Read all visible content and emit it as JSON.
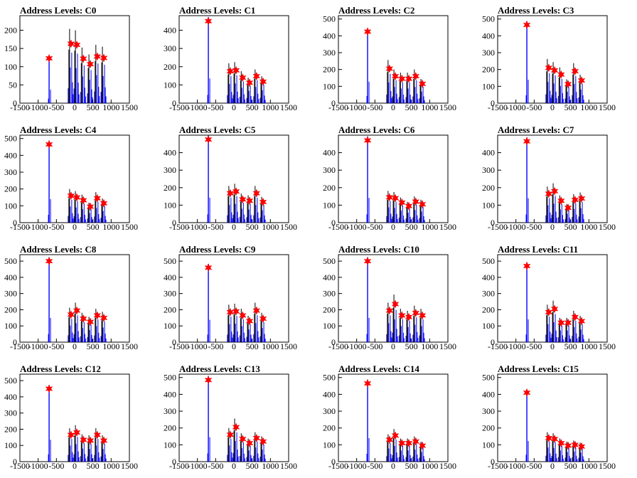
{
  "chart_data": [
    {
      "type": "histogram",
      "title": "Address Levels: C0",
      "ylim": [
        0,
        240
      ],
      "yticks": [
        0,
        50,
        100,
        150,
        200
      ],
      "xlim": [
        -1500,
        1500
      ],
      "xticks": [
        -1500,
        -1000,
        -500,
        0,
        500,
        1000,
        1500
      ],
      "xtick_labels": [
        "-1500",
        "-1000",
        "-500",
        "0",
        "500",
        "1000",
        "1500"
      ],
      "peaks": [
        {
          "x": -700,
          "y": 123
        },
        {
          "x": -100,
          "y": 163
        },
        {
          "x": 60,
          "y": 160
        },
        {
          "x": 240,
          "y": 122
        },
        {
          "x": 430,
          "y": 107
        },
        {
          "x": 620,
          "y": 128
        },
        {
          "x": 800,
          "y": 124
        }
      ]
    },
    {
      "type": "histogram",
      "title": "Address Levels: C1",
      "ylim": [
        0,
        480
      ],
      "yticks": [
        0,
        100,
        200,
        300,
        400
      ],
      "xlim": [
        -1500,
        1500
      ],
      "xticks": [
        -1500,
        -1000,
        -500,
        0,
        500,
        1000,
        1500
      ],
      "xtick_labels": [
        "-1500",
        "-1000",
        "-500",
        "0",
        "500",
        "1000",
        "1500"
      ],
      "peaks": [
        {
          "x": -700,
          "y": 450
        },
        {
          "x": -100,
          "y": 175
        },
        {
          "x": 60,
          "y": 180
        },
        {
          "x": 240,
          "y": 140
        },
        {
          "x": 430,
          "y": 112
        },
        {
          "x": 620,
          "y": 148
        },
        {
          "x": 800,
          "y": 118
        }
      ]
    },
    {
      "type": "histogram",
      "title": "Address Levels: C2",
      "ylim": [
        0,
        520
      ],
      "yticks": [
        0,
        100,
        200,
        300,
        400,
        500
      ],
      "xlim": [
        -1500,
        1500
      ],
      "xticks": [
        -1500,
        -1000,
        -500,
        0,
        500,
        1000,
        1500
      ],
      "xtick_labels": [
        "-1500",
        "-1000",
        "-500",
        "0",
        "500",
        "1000",
        "1500"
      ],
      "peaks": [
        {
          "x": -700,
          "y": 425
        },
        {
          "x": -100,
          "y": 205
        },
        {
          "x": 60,
          "y": 160
        },
        {
          "x": 240,
          "y": 145
        },
        {
          "x": 430,
          "y": 145
        },
        {
          "x": 620,
          "y": 160
        },
        {
          "x": 800,
          "y": 115
        }
      ]
    },
    {
      "type": "histogram",
      "title": "Address Levels: C3",
      "ylim": [
        0,
        520
      ],
      "yticks": [
        0,
        100,
        200,
        300,
        400,
        500
      ],
      "xlim": [
        -1500,
        1500
      ],
      "xticks": [
        -1500,
        -1000,
        -500,
        0,
        500,
        1000,
        1500
      ],
      "xtick_labels": [
        "-1500",
        "-1000",
        "-500",
        "0",
        "500",
        "1000",
        "1500"
      ],
      "peaks": [
        {
          "x": -700,
          "y": 465
        },
        {
          "x": -100,
          "y": 210
        },
        {
          "x": 60,
          "y": 195
        },
        {
          "x": 240,
          "y": 170
        },
        {
          "x": 430,
          "y": 113
        },
        {
          "x": 620,
          "y": 190
        },
        {
          "x": 800,
          "y": 135
        }
      ]
    },
    {
      "type": "histogram",
      "title": "Address Levels: C4",
      "ylim": [
        0,
        520
      ],
      "yticks": [
        0,
        100,
        200,
        300,
        400,
        500
      ],
      "xlim": [
        -1500,
        1500
      ],
      "xticks": [
        -1500,
        -1000,
        -500,
        0,
        500,
        1000,
        1500
      ],
      "xtick_labels": [
        "-1500",
        "-1000",
        "-500",
        "0",
        "500",
        "1000",
        "1500"
      ],
      "peaks": [
        {
          "x": -700,
          "y": 465
        },
        {
          "x": -100,
          "y": 160
        },
        {
          "x": 60,
          "y": 150
        },
        {
          "x": 240,
          "y": 133
        },
        {
          "x": 430,
          "y": 95
        },
        {
          "x": 620,
          "y": 145
        },
        {
          "x": 800,
          "y": 115
        }
      ]
    },
    {
      "type": "histogram",
      "title": "Address Levels: C5",
      "ylim": [
        0,
        500
      ],
      "yticks": [
        0,
        100,
        200,
        300,
        400
      ],
      "xlim": [
        -1500,
        1500
      ],
      "xticks": [
        -1500,
        -1000,
        -500,
        0,
        500,
        1000,
        1500
      ],
      "xtick_labels": [
        "-1500",
        "-1000",
        "-500",
        "0",
        "500",
        "1000",
        "1500"
      ],
      "peaks": [
        {
          "x": -700,
          "y": 475
        },
        {
          "x": -100,
          "y": 168
        },
        {
          "x": 60,
          "y": 178
        },
        {
          "x": 240,
          "y": 133
        },
        {
          "x": 430,
          "y": 125
        },
        {
          "x": 620,
          "y": 168
        },
        {
          "x": 800,
          "y": 118
        }
      ]
    },
    {
      "type": "histogram",
      "title": "Address Levels: C6",
      "ylim": [
        0,
        500
      ],
      "yticks": [
        0,
        100,
        200,
        300,
        400
      ],
      "xlim": [
        -1500,
        1500
      ],
      "xticks": [
        -1500,
        -1000,
        -500,
        0,
        500,
        1000,
        1500
      ],
      "xtick_labels": [
        "-1500",
        "-1000",
        "-500",
        "0",
        "500",
        "1000",
        "1500"
      ],
      "peaks": [
        {
          "x": -700,
          "y": 470
        },
        {
          "x": -100,
          "y": 145
        },
        {
          "x": 60,
          "y": 140
        },
        {
          "x": 240,
          "y": 115
        },
        {
          "x": 430,
          "y": 95
        },
        {
          "x": 620,
          "y": 120
        },
        {
          "x": 800,
          "y": 105
        }
      ]
    },
    {
      "type": "histogram",
      "title": "Address Levels: C7",
      "ylim": [
        0,
        500
      ],
      "yticks": [
        0,
        100,
        200,
        300,
        400
      ],
      "xlim": [
        -1500,
        1500
      ],
      "xticks": [
        -1500,
        -1000,
        -500,
        0,
        500,
        1000,
        1500
      ],
      "xtick_labels": [
        "-1500",
        "-1000",
        "-500",
        "0",
        "500",
        "1000",
        "1500"
      ],
      "peaks": [
        {
          "x": -700,
          "y": 465
        },
        {
          "x": -100,
          "y": 165
        },
        {
          "x": 60,
          "y": 180
        },
        {
          "x": 240,
          "y": 125
        },
        {
          "x": 430,
          "y": 85
        },
        {
          "x": 620,
          "y": 130
        },
        {
          "x": 800,
          "y": 138
        }
      ]
    },
    {
      "type": "histogram",
      "title": "Address Levels: C8",
      "ylim": [
        0,
        540
      ],
      "yticks": [
        0,
        100,
        200,
        300,
        400,
        500
      ],
      "xlim": [
        -1500,
        1500
      ],
      "xticks": [
        -1500,
        -1000,
        -500,
        0,
        500,
        1000,
        1500
      ],
      "xtick_labels": [
        "-1500",
        "-1000",
        "-500",
        "0",
        "500",
        "1000",
        "1500"
      ],
      "peaks": [
        {
          "x": -700,
          "y": 500
        },
        {
          "x": -100,
          "y": 170
        },
        {
          "x": 60,
          "y": 195
        },
        {
          "x": 240,
          "y": 145
        },
        {
          "x": 430,
          "y": 125
        },
        {
          "x": 620,
          "y": 165
        },
        {
          "x": 800,
          "y": 150
        }
      ]
    },
    {
      "type": "histogram",
      "title": "Address Levels: C9",
      "ylim": [
        0,
        540
      ],
      "yticks": [
        0,
        100,
        200,
        300,
        400,
        500
      ],
      "xlim": [
        -1500,
        1500
      ],
      "xticks": [
        -1500,
        -1000,
        -500,
        0,
        500,
        1000,
        1500
      ],
      "xtick_labels": [
        "-1500",
        "-1000",
        "-500",
        "0",
        "500",
        "1000",
        "1500"
      ],
      "peaks": [
        {
          "x": -700,
          "y": 460
        },
        {
          "x": -100,
          "y": 185
        },
        {
          "x": 60,
          "y": 190
        },
        {
          "x": 240,
          "y": 165
        },
        {
          "x": 430,
          "y": 130
        },
        {
          "x": 620,
          "y": 195
        },
        {
          "x": 800,
          "y": 145
        }
      ]
    },
    {
      "type": "histogram",
      "title": "Address Levels: C10",
      "ylim": [
        0,
        540
      ],
      "yticks": [
        0,
        100,
        200,
        300,
        400,
        500
      ],
      "xlim": [
        -1500,
        1500
      ],
      "xticks": [
        -1500,
        -1000,
        -500,
        0,
        500,
        1000,
        1500
      ],
      "xtick_labels": [
        "-1500",
        "-1000",
        "-500",
        "0",
        "500",
        "1000",
        "1500"
      ],
      "peaks": [
        {
          "x": -700,
          "y": 500
        },
        {
          "x": -100,
          "y": 195
        },
        {
          "x": 60,
          "y": 235
        },
        {
          "x": 240,
          "y": 165
        },
        {
          "x": 430,
          "y": 155
        },
        {
          "x": 620,
          "y": 180
        },
        {
          "x": 800,
          "y": 165
        }
      ]
    },
    {
      "type": "histogram",
      "title": "Address Levels: C11",
      "ylim": [
        0,
        540
      ],
      "yticks": [
        0,
        100,
        200,
        300,
        400,
        500
      ],
      "xlim": [
        -1500,
        1500
      ],
      "xticks": [
        -1500,
        -1000,
        -500,
        0,
        500,
        1000,
        1500
      ],
      "xtick_labels": [
        "-1500",
        "-1000",
        "-500",
        "0",
        "500",
        "1000",
        "1500"
      ],
      "peaks": [
        {
          "x": -700,
          "y": 470
        },
        {
          "x": -100,
          "y": 185
        },
        {
          "x": 60,
          "y": 205
        },
        {
          "x": 240,
          "y": 120
        },
        {
          "x": 430,
          "y": 120
        },
        {
          "x": 620,
          "y": 155
        },
        {
          "x": 800,
          "y": 130
        }
      ]
    },
    {
      "type": "histogram",
      "title": "Address Levels: C12",
      "ylim": [
        0,
        540
      ],
      "yticks": [
        0,
        100,
        200,
        300,
        400,
        500
      ],
      "xlim": [
        -1500,
        1500
      ],
      "xticks": [
        -1500,
        -1000,
        -500,
        0,
        500,
        1000,
        1500
      ],
      "xtick_labels": [
        "-1500",
        "-1000",
        "-500",
        "0",
        "500",
        "1000",
        "1500"
      ],
      "peaks": [
        {
          "x": -700,
          "y": 450
        },
        {
          "x": -100,
          "y": 165
        },
        {
          "x": 60,
          "y": 180
        },
        {
          "x": 240,
          "y": 135
        },
        {
          "x": 430,
          "y": 130
        },
        {
          "x": 620,
          "y": 165
        },
        {
          "x": 800,
          "y": 130
        }
      ]
    },
    {
      "type": "histogram",
      "title": "Address Levels: C13",
      "ylim": [
        0,
        520
      ],
      "yticks": [
        0,
        100,
        200,
        300,
        400,
        500
      ],
      "xlim": [
        -1500,
        1500
      ],
      "xticks": [
        -1500,
        -1000,
        -500,
        0,
        500,
        1000,
        1500
      ],
      "xtick_labels": [
        "-1500",
        "-1000",
        "-500",
        "0",
        "500",
        "1000",
        "1500"
      ],
      "peaks": [
        {
          "x": -700,
          "y": 485
        },
        {
          "x": -100,
          "y": 160
        },
        {
          "x": 60,
          "y": 205
        },
        {
          "x": 240,
          "y": 135
        },
        {
          "x": 430,
          "y": 110
        },
        {
          "x": 620,
          "y": 140
        },
        {
          "x": 800,
          "y": 120
        }
      ]
    },
    {
      "type": "histogram",
      "title": "Address Levels: C14",
      "ylim": [
        0,
        520
      ],
      "yticks": [
        0,
        100,
        200,
        300,
        400,
        500
      ],
      "xlim": [
        -1500,
        1500
      ],
      "xticks": [
        -1500,
        -1000,
        -500,
        0,
        500,
        1000,
        1500
      ],
      "xtick_labels": [
        "-1500",
        "-1000",
        "-500",
        "0",
        "500",
        "1000",
        "1500"
      ],
      "peaks": [
        {
          "x": -700,
          "y": 465
        },
        {
          "x": -100,
          "y": 130
        },
        {
          "x": 60,
          "y": 155
        },
        {
          "x": 240,
          "y": 110
        },
        {
          "x": 430,
          "y": 110
        },
        {
          "x": 620,
          "y": 120
        },
        {
          "x": 800,
          "y": 95
        }
      ]
    },
    {
      "type": "histogram",
      "title": "Address Levels: C15",
      "ylim": [
        0,
        520
      ],
      "yticks": [
        0,
        100,
        200,
        300,
        400,
        500
      ],
      "xlim": [
        -1500,
        1500
      ],
      "xticks": [
        -1500,
        -1000,
        -500,
        0,
        500,
        1000,
        1500
      ],
      "xtick_labels": [
        "-1500",
        "-1000",
        "-500",
        "0",
        "500",
        "1000",
        "1500"
      ],
      "peaks": [
        {
          "x": -700,
          "y": 410
        },
        {
          "x": -100,
          "y": 140
        },
        {
          "x": 60,
          "y": 135
        },
        {
          "x": 240,
          "y": 110
        },
        {
          "x": 430,
          "y": 95
        },
        {
          "x": 620,
          "y": 100
        },
        {
          "x": 800,
          "y": 90
        }
      ]
    }
  ],
  "colors": {
    "hist_primary": "#0000ff",
    "hist_secondary": "#000000",
    "peak_marker": "#ff0000",
    "axis": "#000000",
    "background": "#ffffff"
  }
}
